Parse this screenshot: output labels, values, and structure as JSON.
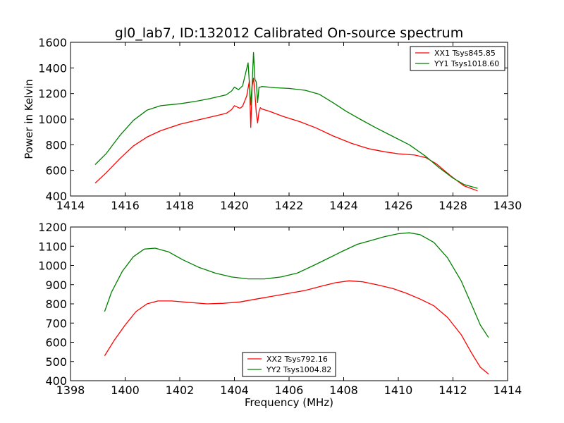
{
  "title": "gl0_lab7, ID:132012 Calibrated On-source spectrum",
  "xlabel": "Frequency (MHz)",
  "chart_data": [
    {
      "type": "line",
      "ylabel": "Power in Kelvin",
      "xlim": [
        1414,
        1430
      ],
      "ylim": [
        400,
        1600
      ],
      "xticks": [
        1414,
        1416,
        1418,
        1420,
        1422,
        1424,
        1426,
        1428,
        1430
      ],
      "yticks": [
        400,
        600,
        800,
        1000,
        1200,
        1400,
        1600
      ],
      "legend_position": "top-right",
      "series": [
        {
          "name": "XX1 Tsys845.85",
          "color": "#ff0000",
          "x": [
            1414.9,
            1415.3,
            1415.8,
            1416.3,
            1416.8,
            1417.3,
            1418.0,
            1418.6,
            1419.1,
            1419.7,
            1419.9,
            1420.0,
            1420.2,
            1420.3,
            1420.45,
            1420.55,
            1420.6,
            1420.65,
            1420.7,
            1420.75,
            1420.8,
            1420.85,
            1420.9,
            1420.95,
            1421.0,
            1421.3,
            1421.8,
            1422.4,
            1423.0,
            1423.6,
            1424.3,
            1424.9,
            1425.5,
            1426.0,
            1426.6,
            1427.0,
            1427.4,
            1427.9,
            1428.4,
            1428.9
          ],
          "y": [
            500,
            580,
            690,
            790,
            860,
            910,
            960,
            990,
            1015,
            1045,
            1075,
            1105,
            1085,
            1100,
            1180,
            1300,
            935,
            1260,
            1320,
            1200,
            1050,
            970,
            1060,
            1090,
            1080,
            1060,
            1020,
            980,
            930,
            870,
            810,
            770,
            745,
            730,
            720,
            700,
            650,
            560,
            480,
            440
          ]
        },
        {
          "name": "YY1 Tsys1018.60",
          "color": "#008000",
          "x": [
            1414.9,
            1415.3,
            1415.8,
            1416.3,
            1416.8,
            1417.3,
            1418.0,
            1418.6,
            1419.1,
            1419.7,
            1419.9,
            1420.0,
            1420.15,
            1420.3,
            1420.5,
            1420.6,
            1420.65,
            1420.7,
            1420.75,
            1420.8,
            1420.85,
            1420.9,
            1420.95,
            1421.0,
            1421.5,
            1422.0,
            1422.6,
            1423.1,
            1423.6,
            1424.1,
            1424.6,
            1425.2,
            1425.8,
            1426.4,
            1427.0,
            1427.5,
            1428.0,
            1428.4,
            1428.9
          ],
          "y": [
            645,
            730,
            870,
            990,
            1070,
            1105,
            1120,
            1140,
            1160,
            1190,
            1220,
            1250,
            1230,
            1260,
            1440,
            1110,
            1280,
            1520,
            1310,
            1290,
            1130,
            1250,
            1250,
            1255,
            1245,
            1240,
            1225,
            1195,
            1130,
            1060,
            1000,
            930,
            865,
            800,
            710,
            620,
            540,
            490,
            460
          ]
        }
      ]
    },
    {
      "type": "line",
      "ylabel": "",
      "xlim": [
        1398,
        1414
      ],
      "ylim": [
        400,
        1200
      ],
      "xticks": [
        1398,
        1400,
        1402,
        1404,
        1406,
        1408,
        1410,
        1412,
        1414
      ],
      "yticks": [
        400,
        500,
        600,
        700,
        800,
        900,
        1000,
        1100,
        1200
      ],
      "legend_position": "bottom-center",
      "series": [
        {
          "name": "XX2 Tsys792.16",
          "color": "#ff0000",
          "x": [
            1399.25,
            1399.6,
            1400.0,
            1400.4,
            1400.8,
            1401.2,
            1401.7,
            1402.3,
            1403.0,
            1403.6,
            1404.2,
            1404.8,
            1405.4,
            1406.0,
            1406.6,
            1407.2,
            1407.7,
            1408.2,
            1408.7,
            1409.2,
            1409.8,
            1410.3,
            1410.8,
            1411.3,
            1411.8,
            1412.3,
            1412.7,
            1413.0,
            1413.3
          ],
          "y": [
            530,
            610,
            690,
            760,
            800,
            815,
            815,
            808,
            800,
            803,
            810,
            825,
            840,
            855,
            870,
            893,
            910,
            920,
            915,
            900,
            880,
            855,
            825,
            790,
            730,
            640,
            540,
            470,
            435
          ]
        },
        {
          "name": "YY2 Tsys1004.82",
          "color": "#008000",
          "x": [
            1399.25,
            1399.5,
            1399.9,
            1400.3,
            1400.7,
            1401.1,
            1401.6,
            1402.1,
            1402.7,
            1403.3,
            1403.9,
            1404.5,
            1405.1,
            1405.7,
            1406.3,
            1406.9,
            1407.4,
            1407.9,
            1408.5,
            1409.0,
            1409.5,
            1410.0,
            1410.4,
            1410.8,
            1411.3,
            1411.8,
            1412.3,
            1412.7,
            1413.0,
            1413.3
          ],
          "y": [
            760,
            860,
            970,
            1045,
            1085,
            1090,
            1070,
            1030,
            990,
            960,
            940,
            930,
            930,
            940,
            960,
            1000,
            1035,
            1070,
            1110,
            1130,
            1150,
            1165,
            1170,
            1160,
            1120,
            1040,
            920,
            790,
            690,
            625
          ]
        }
      ]
    }
  ]
}
